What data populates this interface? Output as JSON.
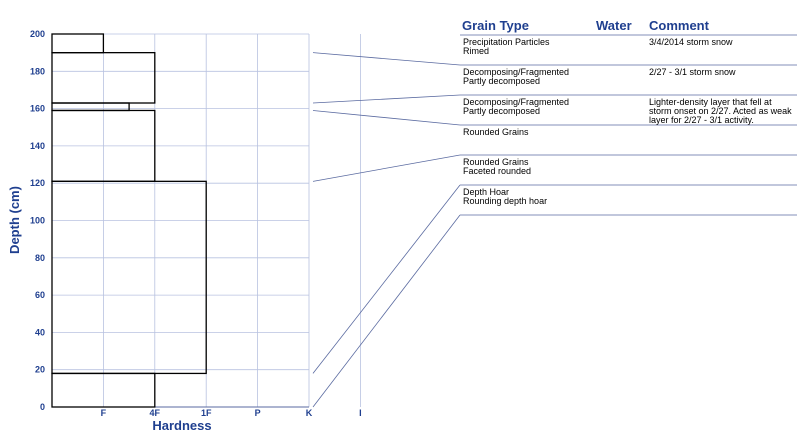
{
  "chart_data": {
    "type": "snow-profile",
    "xlabel": "Hardness",
    "ylabel": "Depth (cm)",
    "ylim": [
      0,
      200
    ],
    "yticks": [
      0,
      20,
      40,
      60,
      80,
      100,
      120,
      140,
      160,
      180,
      200
    ],
    "hardness_scale": [
      "F",
      "4F",
      "1F",
      "P",
      "K",
      "I"
    ],
    "grid": true,
    "columns": {
      "grain_type": "Grain Type",
      "water": "Water",
      "comment": "Comment"
    },
    "layers": [
      {
        "top": 200,
        "bottom": 190,
        "hardness": 1.0,
        "grain_primary": "Precipitation Particles",
        "grain_secondary": "Rimed",
        "water": "",
        "comment": [
          "3/4/2014 storm snow"
        ]
      },
      {
        "top": 190,
        "bottom": 163,
        "hardness": 2.0,
        "grain_primary": "Decomposing/Fragmented",
        "grain_secondary": "Partly decomposed",
        "water": "",
        "comment": [
          "2/27 - 3/1 storm snow"
        ]
      },
      {
        "top": 163,
        "bottom": 159,
        "hardness": 1.5,
        "grain_primary": "Decomposing/Fragmented",
        "grain_secondary": "Partly decomposed",
        "water": "",
        "comment": [
          "Lighter-density layer that fell at",
          "storm onset on 2/27. Acted as weak",
          "layer for 2/27 - 3/1 activity."
        ]
      },
      {
        "top": 159,
        "bottom": 121,
        "hardness": 2.0,
        "grain_primary": "Rounded Grains",
        "grain_secondary": "",
        "water": "",
        "comment": []
      },
      {
        "top": 121,
        "bottom": 18,
        "hardness": 3.0,
        "grain_primary": "Rounded Grains",
        "grain_secondary": "Faceted rounded",
        "water": "",
        "comment": []
      },
      {
        "top": 18,
        "bottom": 0,
        "hardness": 2.0,
        "grain_primary": "Depth Hoar",
        "grain_secondary": "Rounding depth hoar",
        "water": "",
        "comment": []
      }
    ],
    "colors": {
      "axis_text": "#1f3f8f",
      "grid": "#b8c2e0",
      "layer": "#000000",
      "table_line": "#5a6aa0"
    }
  }
}
